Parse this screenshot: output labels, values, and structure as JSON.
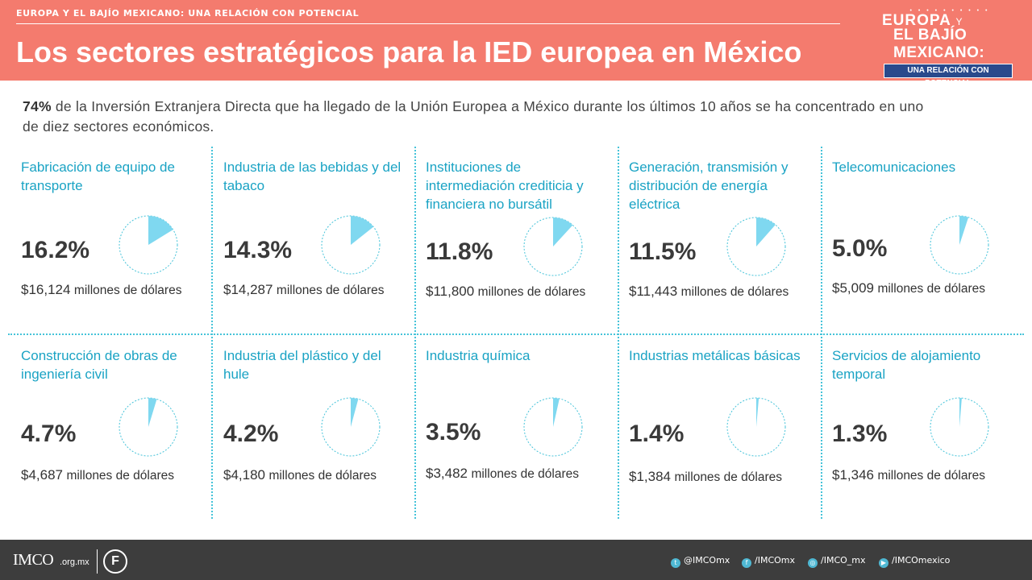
{
  "header": {
    "kicker": "EUROPA Y EL BAJÍO MEXICANO: UNA RELACIÓN CON POTENCIAL",
    "title": "Los sectores estratégicos para la IED europea en México",
    "logo": {
      "dots": "• • • • • • • • • •",
      "line1": "EUROPA",
      "line1_y": "Y",
      "line2": "EL BAJÍO MEXICANO:",
      "line3": "UNA RELACIÓN CON POTENCIAL"
    }
  },
  "intro": {
    "bold": "74%",
    "text": " de la Inversión Extranjera Directa que ha llegado de la Unión Europea a México durante los últimos 10 años se ha concentrado en uno de diez sectores económicos."
  },
  "sectors": [
    {
      "name": "Fabricación de equipo de transporte",
      "pct_label": "16.2%",
      "value": 16.2,
      "amount": "$16,124",
      "unit": "millones de dólares"
    },
    {
      "name": "Industria de las bebidas y del tabaco",
      "pct_label": "14.3%",
      "value": 14.3,
      "amount": "$14,287",
      "unit": "millones de dólares"
    },
    {
      "name": "Instituciones de intermediación crediticia y financiera no bursátil",
      "pct_label": "11.8%",
      "value": 11.8,
      "amount": "$11,800",
      "unit": "millones de dólares"
    },
    {
      "name": "Generación, transmisión y distribución de energía eléctrica",
      "pct_label": "11.5%",
      "value": 11.5,
      "amount": "$11,443",
      "unit": "millones de dólares"
    },
    {
      "name": "Telecomunicaciones",
      "pct_label": "5.0%",
      "value": 5.0,
      "amount": "$5,009",
      "unit": "millones de dólares"
    },
    {
      "name": "Construcción de obras de ingeniería civil",
      "pct_label": "4.7%",
      "value": 4.7,
      "amount": "$4,687",
      "unit": "millones de dólares"
    },
    {
      "name": "Industria del plástico y del hule",
      "pct_label": "4.2%",
      "value": 4.2,
      "amount": "$4,180",
      "unit": "millones de dólares"
    },
    {
      "name": "Industria química",
      "pct_label": "3.5%",
      "value": 3.5,
      "amount": "$3,482",
      "unit": "millones de dólares"
    },
    {
      "name": "Industrias metálicas básicas",
      "pct_label": "1.4%",
      "value": 1.4,
      "amount": "$1,384",
      "unit": "millones de dólares"
    },
    {
      "name": "Servicios de alojamiento temporal",
      "pct_label": "1.3%",
      "value": 1.3,
      "amount": "$1,346",
      "unit": "millones de dólares"
    }
  ],
  "colors": {
    "header_bg": "#f47b6e",
    "accent": "#1aa3c4",
    "pie_fill": "#7fd8f0",
    "pie_outline": "#45c3d9",
    "footer_bg": "#3d3d3d"
  },
  "footer": {
    "brand": "IMCO",
    "domain": ".org.mx",
    "badge": "F",
    "social": [
      {
        "icon": "twitter-icon",
        "glyph": "t",
        "label": "@IMCOmx"
      },
      {
        "icon": "facebook-icon",
        "glyph": "f",
        "label": "/IMCOmx"
      },
      {
        "icon": "instagram-icon",
        "glyph": "◎",
        "label": "/IMCO_mx"
      },
      {
        "icon": "youtube-icon",
        "glyph": "▶",
        "label": "/IMCOmexico"
      }
    ]
  }
}
